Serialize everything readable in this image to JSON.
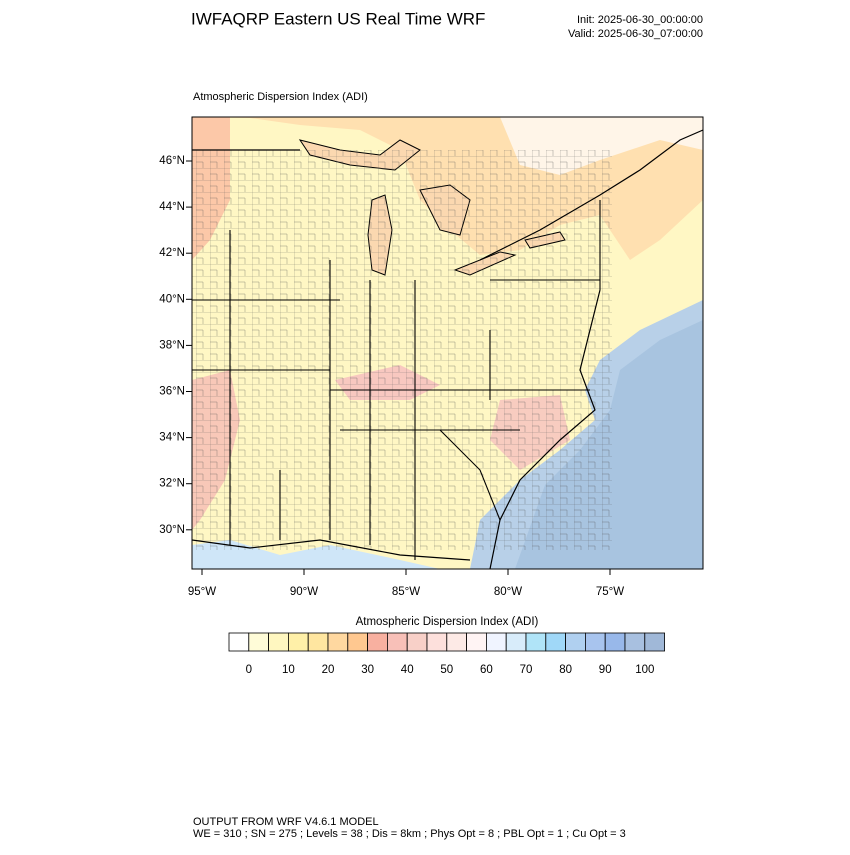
{
  "header": {
    "title": "IWFAQRP Eastern US Real Time WRF",
    "init": "Init: 2025-06-30_00:00:00",
    "valid": "Valid: 2025-06-30_07:00:00"
  },
  "map": {
    "subtitle": "Atmospheric Dispersion Index   (ADI)",
    "lat_labels": [
      "46°N",
      "44°N",
      "42°N",
      "40°N",
      "38°N",
      "36°N",
      "34°N",
      "32°N",
      "30°N"
    ],
    "lon_labels": [
      "95°W",
      "90°W",
      "85°W",
      "80°W",
      "75°W"
    ]
  },
  "colorbar": {
    "title": "Atmospheric Dispersion Index (ADI)",
    "ticks": [
      0,
      10,
      20,
      30,
      40,
      50,
      60,
      70,
      80,
      90,
      100
    ],
    "colors": [
      "#ffffff",
      "#fffcd8",
      "#fff7c0",
      "#fff0a8",
      "#ffe6a0",
      "#ffd8a0",
      "#ffc890",
      "#f8b0a0",
      "#f8c0b8",
      "#f8d0c8",
      "#fde0dc",
      "#fdeae6",
      "#fff4f4",
      "#f0f4ff",
      "#d8ecfa",
      "#b0e4f8",
      "#a0d8f8",
      "#b0d0f0",
      "#a8c4ee",
      "#98b8ea",
      "#a8c0e0",
      "#a0b8d8"
    ]
  },
  "footer": {
    "line1": "OUTPUT FROM WRF V4.6.1 MODEL",
    "line2": "WE = 310 ; SN = 275 ; Levels = 38 ; Dis = 8km ; Phys Opt = 8 ; PBL Opt = 1 ; Cu Opt = 3"
  }
}
